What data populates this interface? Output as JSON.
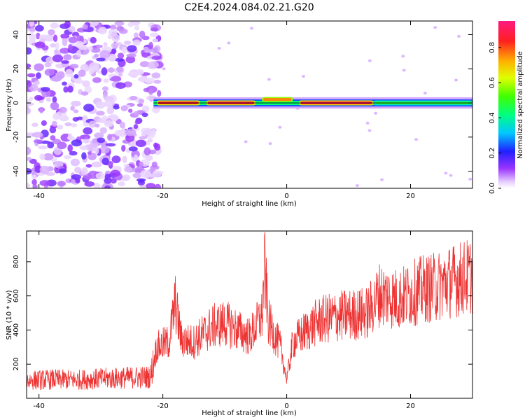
{
  "title": "C2E4.2024.084.02.21.G20",
  "chart_data": [
    {
      "type": "heatmap",
      "xlabel": "Height of straight line (km)",
      "ylabel": "Frequency (Hz)",
      "xlim": [
        -42,
        30
      ],
      "ylim": [
        -50,
        48
      ],
      "xticks": [
        -40,
        -20,
        0,
        20
      ],
      "yticks": [
        -40,
        -20,
        0,
        20,
        40
      ],
      "colorbar": {
        "label": "Normalized spectral amplitude",
        "range": [
          0,
          0.95
        ],
        "ticks": [
          0.0,
          0.2,
          0.4,
          0.6,
          0.8
        ]
      },
      "noise_region_x": [
        -42,
        -21.5
      ],
      "signal_line_frequency_hz": 0,
      "signal_x_range": [
        -21.5,
        30
      ],
      "peak_segments": [
        {
          "x": [
            -21,
            -14
          ],
          "f": 0,
          "amp": 0.9
        },
        {
          "x": [
            -13,
            -5
          ],
          "f": 0,
          "amp": 0.92
        },
        {
          "x": [
            -4,
            1
          ],
          "f": 2,
          "amp": 0.8
        },
        {
          "x": [
            2,
            14
          ],
          "f": 0,
          "amp": 0.93
        },
        {
          "x": [
            14,
            30
          ],
          "f": 0,
          "amp": 0.5
        }
      ]
    },
    {
      "type": "line",
      "xlabel": "Height of straight line (km)",
      "ylabel": "SNR (10 * v/v)",
      "xlim": [
        -42,
        30
      ],
      "ylim": [
        0,
        980
      ],
      "xticks": [
        -40,
        -20,
        0,
        20
      ],
      "yticks": [
        200,
        400,
        600,
        800
      ],
      "color": "#ee3333",
      "series": [
        {
          "x": [
            -42,
            -38,
            -34,
            -30,
            -26,
            -22,
            -21,
            -19,
            -18,
            -17,
            -15,
            -12,
            -10,
            -8,
            -6,
            -4,
            -3.5,
            -3,
            -1,
            0,
            1,
            3,
            5,
            8,
            11,
            13,
            14,
            15,
            16,
            18,
            20,
            22,
            24,
            26,
            28,
            30
          ],
          "values": [
            105,
            110,
            108,
            115,
            120,
            125,
            300,
            330,
            560,
            340,
            330,
            420,
            440,
            400,
            360,
            480,
            780,
            450,
            300,
            110,
            330,
            390,
            450,
            480,
            490,
            500,
            550,
            610,
            600,
            580,
            610,
            640,
            650,
            680,
            700,
            720
          ]
        }
      ]
    }
  ]
}
